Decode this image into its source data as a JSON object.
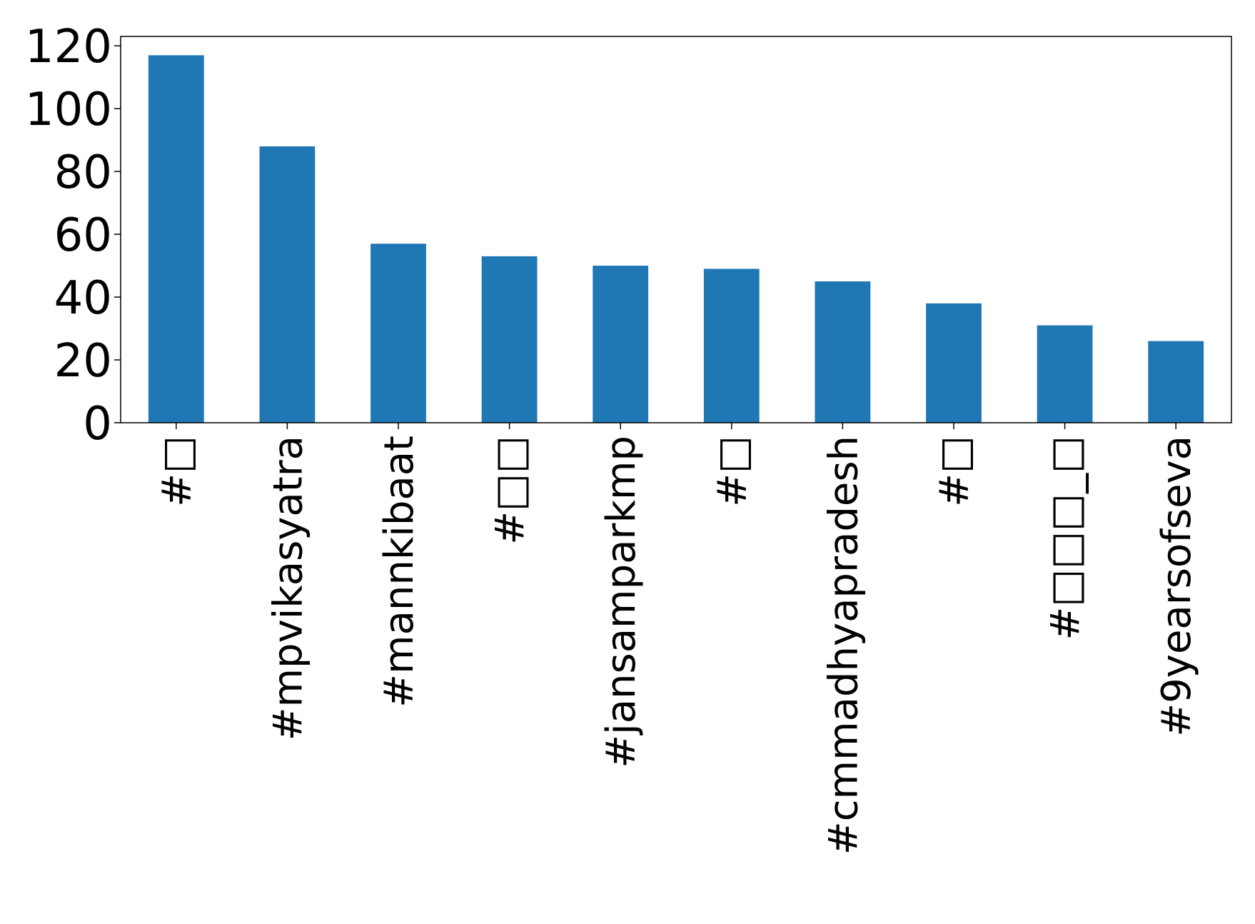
{
  "chart_data": {
    "type": "bar",
    "title": "",
    "xlabel": "",
    "ylabel": "",
    "categories": [
      "#□",
      "#mpvikasyatra",
      "#mannkibaat",
      "#□□",
      "#jansamparkmp",
      "#□",
      "#cmmadhyapradesh",
      "#□",
      "#□□□_□",
      "#9yearsofseva"
    ],
    "values": [
      117,
      88,
      57,
      53,
      50,
      49,
      45,
      38,
      31,
      26
    ],
    "ylim": [
      0,
      123
    ],
    "yticks": [
      0,
      20,
      40,
      60,
      80,
      100,
      120
    ],
    "grid": false,
    "legend": "none",
    "colors": {
      "bar": "#1f77b4",
      "axis": "#000000",
      "background": "#ffffff"
    }
  }
}
